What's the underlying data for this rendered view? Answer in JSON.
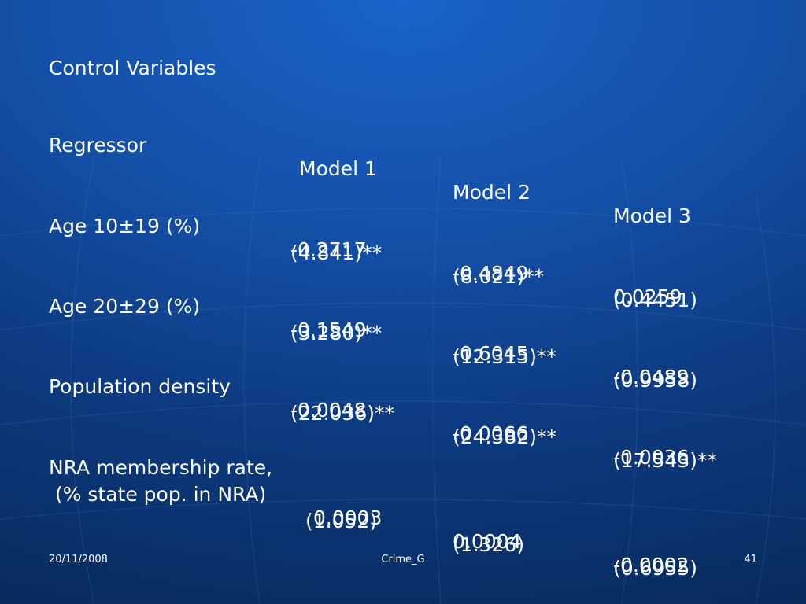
{
  "slide": {
    "heading": "Control Variables",
    "table": {
      "headers": [
        "Regressor",
        "Model 1",
        "Model 2",
        "Model 3"
      ],
      "rows": [
        {
          "label": "Age 10±19 (%)",
          "coef": [
            "-0.2717",
            "-0.4849",
            "0.0259"
          ],
          "stat": [
            "(4.841)**",
            "(8.021)**",
            "(0.4451)"
          ]
        },
        {
          "label": "Age 20±29 (%)",
          "coef": [
            "-0.1549",
            "-0.6045",
            "-0.0489"
          ],
          "stat": [
            "(3.280)**",
            "(12.315)**",
            "(0.9958)"
          ]
        },
        {
          "label": "Population density",
          "coef": [
            "-0.0048",
            "-0.0066",
            "-0.0036"
          ],
          "stat": [
            "(22.036)**",
            "(24.382)**",
            "(17.543)**"
          ]
        },
        {
          "label": "NRA membership rate,",
          "label2": " (% state pop. in NRA)",
          "coef": [
            "0.0003",
            "0.0004",
            "-0.0002"
          ],
          "stat": [
            "(1.052)",
            "(1.326)",
            "(0.6955)"
          ]
        }
      ]
    }
  },
  "footer": {
    "date": "20/11/2008",
    "title": "Crime_G",
    "page": "41"
  },
  "colors": {
    "background": "#1450a8",
    "text": "#ffffff"
  }
}
